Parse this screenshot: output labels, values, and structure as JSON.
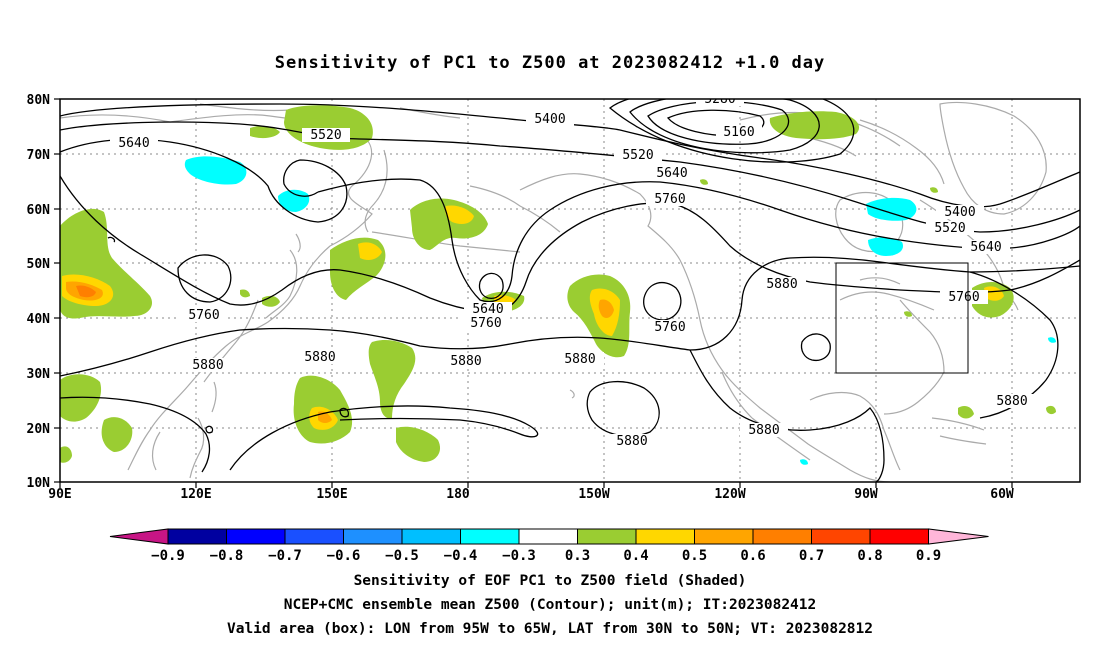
{
  "title": "Sensitivity of PC1 to Z500 at 2023082412 +1.0 day",
  "lat_labels": [
    "80N",
    "70N",
    "60N",
    "50N",
    "40N",
    "30N",
    "20N",
    "10N"
  ],
  "lon_labels": [
    "90E",
    "120E",
    "150E",
    "180",
    "150W",
    "120W",
    "90W",
    "60W"
  ],
  "contour_labels": {
    "c5280": "5280",
    "c5160": "5160",
    "c5400a": "5400",
    "c5520a": "5520",
    "c5520b": "5520",
    "c5640a": "5640",
    "c5640b": "5640",
    "c5640c": "5640",
    "c5640d": "5640",
    "c5760a": "5760",
    "c5760b": "5760",
    "c5760c": "5760",
    "c5760d": "5760",
    "c5760e": "5760",
    "c5880a": "5880",
    "c5880b": "5880",
    "c5880c": "5880",
    "c5880d": "5880",
    "c5880e": "5880",
    "c5880f": "5880",
    "c5880g": "5880",
    "c5880h": "5880",
    "c5400b": "5400",
    "c5520c": "5520"
  },
  "colorbar": {
    "colors": [
      "#c71585",
      "#0000a0",
      "#0000ff",
      "#1a50ff",
      "#1e90ff",
      "#00bfff",
      "#00ffff",
      "#ffffff",
      "#9acd32",
      "#ffd700",
      "#ffa500",
      "#ff7f00",
      "#ff4500",
      "#ff0000",
      "#ffb6d9"
    ],
    "labels": [
      "−0.9",
      "−0.8",
      "−0.7",
      "−0.6",
      "−0.5",
      "−0.4",
      "−0.3",
      "0.3",
      "0.4",
      "0.5",
      "0.6",
      "0.7",
      "0.8",
      "0.9"
    ]
  },
  "valid_box": {
    "lon_w": -95,
    "lon_e": -65,
    "lat_s": 30,
    "lat_n": 50
  },
  "caption": {
    "line1": "Sensitivity of EOF PC1 to Z500 field (Shaded)",
    "line2": "NCEP+CMC ensemble mean Z500 (Contour); unit(m); IT:2023082412",
    "line3": "Valid area (box): LON from 95W to 65W, LAT from 30N to 50N; VT: 2023082812"
  }
}
